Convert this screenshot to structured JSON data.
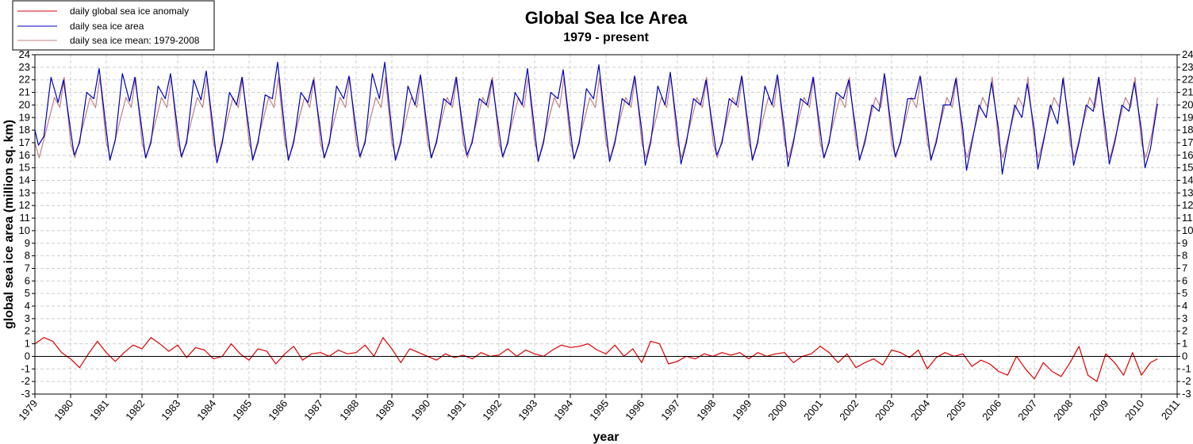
{
  "chart_data": {
    "type": "line",
    "title": "Global Sea Ice Area",
    "subtitle": "1979 - present",
    "xlabel": "year",
    "ylabel": "global sea ice area (million sq. km)",
    "xlim": [
      1979,
      2011
    ],
    "ylim": [
      -3,
      24
    ],
    "x_ticks": [
      "1979",
      "1980",
      "1981",
      "1982",
      "1983",
      "1984",
      "1985",
      "1986",
      "1987",
      "1988",
      "1989",
      "1990",
      "1991",
      "1992",
      "1993",
      "1994",
      "1995",
      "1996",
      "1997",
      "1998",
      "1999",
      "2000",
      "2001",
      "2002",
      "2003",
      "2004",
      "2005",
      "2006",
      "2007",
      "2008",
      "2009",
      "2010",
      "2011"
    ],
    "y_ticks": [
      "24",
      "23",
      "22",
      "21",
      "20",
      "19",
      "18",
      "17",
      "16",
      "15",
      "14",
      "13",
      "12",
      "11",
      "10",
      "9",
      "8",
      "7",
      "6",
      "5",
      "4",
      "3",
      "2",
      "1",
      "0",
      "-1",
      "-2",
      "-3"
    ],
    "grid": true,
    "legend_position": "top-left",
    "series": [
      {
        "name": "daily global sea ice anomaly",
        "color": "#dd0000",
        "x": [
          1979.0,
          1979.25,
          1979.5,
          1979.75,
          1980.0,
          1980.25,
          1980.5,
          1980.75,
          1981.0,
          1981.25,
          1981.5,
          1981.75,
          1982.0,
          1982.25,
          1982.5,
          1982.75,
          1983.0,
          1983.25,
          1983.5,
          1983.75,
          1984.0,
          1984.25,
          1984.5,
          1984.75,
          1985.0,
          1985.25,
          1985.5,
          1985.75,
          1986.0,
          1986.25,
          1986.5,
          1986.75,
          1987.0,
          1987.25,
          1987.5,
          1987.75,
          1988.0,
          1988.25,
          1988.5,
          1988.75,
          1989.0,
          1989.25,
          1989.5,
          1989.75,
          1990.0,
          1990.25,
          1990.5,
          1990.75,
          1991.0,
          1991.25,
          1991.5,
          1991.75,
          1992.0,
          1992.25,
          1992.5,
          1992.75,
          1993.0,
          1993.25,
          1993.5,
          1993.75,
          1994.0,
          1994.25,
          1994.5,
          1994.75,
          1995.0,
          1995.25,
          1995.5,
          1995.75,
          1996.0,
          1996.25,
          1996.5,
          1996.75,
          1997.0,
          1997.25,
          1997.5,
          1997.75,
          1998.0,
          1998.25,
          1998.5,
          1998.75,
          1999.0,
          1999.25,
          1999.5,
          1999.75,
          2000.0,
          2000.25,
          2000.5,
          2000.75,
          2001.0,
          2001.25,
          2001.5,
          2001.75,
          2002.0,
          2002.25,
          2002.5,
          2002.75,
          2003.0,
          2003.25,
          2003.5,
          2003.75,
          2004.0,
          2004.25,
          2004.5,
          2004.75,
          2005.0,
          2005.25,
          2005.5,
          2005.75,
          2006.0,
          2006.25,
          2006.5,
          2006.75,
          2007.0,
          2007.25,
          2007.5,
          2007.75,
          2008.0,
          2008.25,
          2008.5,
          2008.75,
          2009.0,
          2009.25,
          2009.5,
          2009.75,
          2010.0,
          2010.25,
          2010.45
        ],
        "values": [
          1.0,
          1.5,
          1.2,
          0.3,
          -0.2,
          -0.9,
          0.2,
          1.2,
          0.3,
          -0.4,
          0.3,
          0.9,
          0.6,
          1.5,
          1.0,
          0.4,
          0.9,
          -0.1,
          0.7,
          0.5,
          -0.2,
          0.0,
          1.0,
          0.2,
          -0.3,
          0.6,
          0.4,
          -0.6,
          0.2,
          0.8,
          -0.3,
          0.2,
          0.3,
          0.0,
          0.5,
          0.2,
          0.3,
          0.9,
          0.0,
          1.5,
          0.6,
          -0.5,
          0.6,
          0.3,
          0.0,
          -0.3,
          0.2,
          -0.1,
          0.1,
          -0.2,
          0.3,
          0.0,
          0.1,
          0.6,
          0.0,
          0.5,
          0.2,
          0.0,
          0.5,
          0.9,
          0.7,
          0.8,
          1.0,
          0.5,
          0.2,
          0.9,
          0.0,
          0.6,
          -0.5,
          1.2,
          1.0,
          -0.6,
          -0.4,
          0.0,
          -0.2,
          0.2,
          0.0,
          0.3,
          0.1,
          0.3,
          -0.2,
          0.3,
          0.0,
          0.2,
          0.3,
          -0.5,
          0.0,
          0.2,
          0.8,
          0.3,
          -0.5,
          0.2,
          -0.9,
          -0.5,
          -0.2,
          -0.7,
          0.5,
          0.3,
          -0.1,
          0.5,
          -1.0,
          -0.1,
          0.3,
          0.0,
          0.2,
          -0.8,
          -0.3,
          -0.6,
          -1.2,
          -1.5,
          0.0,
          -1.0,
          -1.8,
          -0.5,
          -1.2,
          -1.6,
          -0.5,
          0.8,
          -1.5,
          -2.0,
          0.2,
          -0.5,
          -1.5,
          0.3,
          -1.5,
          -0.5,
          -0.2
        ]
      },
      {
        "name": "daily sea ice area",
        "color": "#0000bb",
        "x": [
          1979.0,
          1979.1,
          1979.25,
          1979.45,
          1979.65,
          1979.8,
          1980.0,
          1980.1,
          1980.25,
          1980.45,
          1980.65,
          1980.8,
          1981.0,
          1981.1,
          1981.25,
          1981.45,
          1981.65,
          1981.8,
          1982.0,
          1982.1,
          1982.25,
          1982.45,
          1982.65,
          1982.8,
          1983.0,
          1983.1,
          1983.25,
          1983.45,
          1983.65,
          1983.8,
          1984.0,
          1984.1,
          1984.25,
          1984.45,
          1984.65,
          1984.8,
          1985.0,
          1985.1,
          1985.25,
          1985.45,
          1985.65,
          1985.8,
          1986.0,
          1986.1,
          1986.25,
          1986.45,
          1986.65,
          1986.8,
          1987.0,
          1987.1,
          1987.25,
          1987.45,
          1987.65,
          1987.8,
          1988.0,
          1988.1,
          1988.25,
          1988.45,
          1988.65,
          1988.8,
          1989.0,
          1989.1,
          1989.25,
          1989.45,
          1989.65,
          1989.8,
          1990.0,
          1990.1,
          1990.25,
          1990.45,
          1990.65,
          1990.8,
          1991.0,
          1991.1,
          1991.25,
          1991.45,
          1991.65,
          1991.8,
          1992.0,
          1992.1,
          1992.25,
          1992.45,
          1992.65,
          1992.8,
          1993.0,
          1993.1,
          1993.25,
          1993.45,
          1993.65,
          1993.8,
          1994.0,
          1994.1,
          1994.25,
          1994.45,
          1994.65,
          1994.8,
          1995.0,
          1995.1,
          1995.25,
          1995.45,
          1995.65,
          1995.8,
          1996.0,
          1996.1,
          1996.25,
          1996.45,
          1996.65,
          1996.8,
          1997.0,
          1997.1,
          1997.25,
          1997.45,
          1997.65,
          1997.8,
          1998.0,
          1998.1,
          1998.25,
          1998.45,
          1998.65,
          1998.8,
          1999.0,
          1999.1,
          1999.25,
          1999.45,
          1999.65,
          1999.8,
          2000.0,
          2000.1,
          2000.25,
          2000.45,
          2000.65,
          2000.8,
          2001.0,
          2001.1,
          2001.25,
          2001.45,
          2001.65,
          2001.8,
          2002.0,
          2002.1,
          2002.25,
          2002.45,
          2002.65,
          2002.8,
          2003.0,
          2003.1,
          2003.25,
          2003.45,
          2003.65,
          2003.8,
          2004.0,
          2004.1,
          2004.25,
          2004.45,
          2004.65,
          2004.8,
          2005.0,
          2005.1,
          2005.25,
          2005.45,
          2005.65,
          2005.8,
          2006.0,
          2006.1,
          2006.25,
          2006.45,
          2006.65,
          2006.8,
          2007.0,
          2007.1,
          2007.25,
          2007.45,
          2007.65,
          2007.8,
          2008.0,
          2008.1,
          2008.25,
          2008.45,
          2008.65,
          2008.8,
          2009.0,
          2009.1,
          2009.25,
          2009.45,
          2009.65,
          2009.8,
          2010.0,
          2010.1,
          2010.25,
          2010.45
        ],
        "values": [
          18.0,
          16.8,
          17.5,
          22.2,
          20.2,
          22.0,
          18.0,
          16.0,
          17.0,
          21.0,
          20.5,
          22.9,
          18.0,
          15.6,
          17.2,
          22.5,
          20.3,
          22.2,
          18.0,
          15.8,
          17.0,
          21.5,
          20.5,
          22.5,
          18.0,
          15.9,
          17.0,
          22.0,
          20.4,
          22.7,
          18.0,
          15.4,
          17.0,
          21.0,
          20.0,
          22.2,
          18.0,
          15.6,
          17.0,
          20.8,
          20.5,
          23.4,
          18.0,
          15.6,
          17.0,
          21.0,
          20.2,
          22.0,
          18.0,
          15.8,
          17.0,
          21.5,
          20.5,
          22.3,
          18.0,
          15.9,
          17.0,
          22.5,
          20.5,
          23.4,
          18.0,
          15.6,
          17.0,
          21.5,
          20.0,
          22.4,
          18.0,
          15.8,
          17.0,
          20.5,
          20.0,
          22.2,
          18.0,
          16.0,
          17.0,
          20.5,
          20.0,
          22.0,
          18.0,
          15.9,
          17.0,
          21.0,
          20.0,
          22.9,
          18.0,
          15.5,
          17.0,
          21.0,
          20.5,
          22.8,
          18.0,
          15.7,
          17.0,
          21.3,
          20.5,
          23.2,
          18.0,
          15.5,
          17.0,
          20.5,
          20.0,
          22.3,
          18.0,
          15.2,
          17.0,
          21.5,
          20.0,
          22.6,
          18.0,
          15.3,
          17.0,
          20.5,
          20.0,
          22.0,
          18.0,
          16.0,
          17.0,
          20.5,
          20.0,
          22.3,
          18.0,
          15.6,
          17.0,
          21.5,
          20.0,
          22.4,
          18.0,
          15.1,
          17.0,
          20.5,
          20.0,
          22.2,
          18.0,
          15.8,
          17.0,
          21.0,
          20.5,
          22.0,
          18.0,
          15.6,
          17.0,
          20.0,
          19.5,
          22.5,
          18.0,
          15.9,
          17.0,
          20.5,
          20.5,
          22.3,
          18.0,
          15.6,
          17.0,
          20.0,
          20.0,
          22.1,
          18.0,
          14.8,
          17.0,
          20.0,
          19.0,
          21.8,
          18.0,
          14.5,
          17.0,
          20.0,
          19.0,
          21.7,
          18.0,
          14.9,
          17.0,
          20.0,
          18.5,
          22.1,
          18.0,
          15.2,
          17.0,
          20.0,
          19.5,
          22.2,
          18.0,
          15.3,
          17.0,
          20.0,
          19.5,
          21.8,
          18.0,
          15.0,
          16.5,
          20.1
        ]
      },
      {
        "name": "daily sea ice mean: 1979-2008",
        "color": "#c08080",
        "x": [
          1979.0,
          1979.12,
          1979.3,
          1979.55,
          1979.7,
          1979.82,
          1980.0,
          1980.12,
          1980.3,
          1980.55,
          1980.7,
          1980.82,
          1981.0,
          1981.12,
          1981.3,
          1981.55,
          1981.7,
          1981.82,
          1982.0,
          1982.12,
          1982.3,
          1982.55,
          1982.7,
          1982.82,
          1983.0,
          1983.12,
          1983.3,
          1983.55,
          1983.7,
          1983.82,
          1984.0,
          1984.12,
          1984.3,
          1984.55,
          1984.7,
          1984.82,
          1985.0,
          1985.12,
          1985.3,
          1985.55,
          1985.7,
          1985.82,
          1986.0,
          1986.12,
          1986.3,
          1986.55,
          1986.7,
          1986.82,
          1987.0,
          1987.12,
          1987.3,
          1987.55,
          1987.7,
          1987.82,
          1988.0,
          1988.12,
          1988.3,
          1988.55,
          1988.7,
          1988.82,
          1989.0,
          1989.12,
          1989.3,
          1989.55,
          1989.7,
          1989.82,
          1990.0,
          1990.12,
          1990.3,
          1990.55,
          1990.7,
          1990.82,
          1991.0,
          1991.12,
          1991.3,
          1991.55,
          1991.7,
          1991.82,
          1992.0,
          1992.12,
          1992.3,
          1992.55,
          1992.7,
          1992.82,
          1993.0,
          1993.12,
          1993.3,
          1993.55,
          1993.7,
          1993.82,
          1994.0,
          1994.12,
          1994.3,
          1994.55,
          1994.7,
          1994.82,
          1995.0,
          1995.12,
          1995.3,
          1995.55,
          1995.7,
          1995.82,
          1996.0,
          1996.12,
          1996.3,
          1996.55,
          1996.7,
          1996.82,
          1997.0,
          1997.12,
          1997.3,
          1997.55,
          1997.7,
          1997.82,
          1998.0,
          1998.12,
          1998.3,
          1998.55,
          1998.7,
          1998.82,
          1999.0,
          1999.12,
          1999.3,
          1999.55,
          1999.7,
          1999.82,
          2000.0,
          2000.12,
          2000.3,
          2000.55,
          2000.7,
          2000.82,
          2001.0,
          2001.12,
          2001.3,
          2001.55,
          2001.7,
          2001.82,
          2002.0,
          2002.12,
          2002.3,
          2002.55,
          2002.7,
          2002.82,
          2003.0,
          2003.12,
          2003.3,
          2003.55,
          2003.7,
          2003.82,
          2004.0,
          2004.12,
          2004.3,
          2004.55,
          2004.7,
          2004.82,
          2005.0,
          2005.12,
          2005.3,
          2005.55,
          2005.7,
          2005.82,
          2006.0,
          2006.12,
          2006.3,
          2006.55,
          2006.7,
          2006.82,
          2007.0,
          2007.12,
          2007.3,
          2007.55,
          2007.7,
          2007.82,
          2008.0,
          2008.12,
          2008.3,
          2008.55,
          2008.7,
          2008.82,
          2009.0,
          2009.12,
          2009.3,
          2009.55,
          2009.7,
          2009.82,
          2010.0,
          2010.12,
          2010.3,
          2010.45
        ],
        "values": [
          17.0,
          15.8,
          17.8,
          20.6,
          19.8,
          22.2,
          17.0,
          15.8,
          17.8,
          20.6,
          19.8,
          22.2,
          17.0,
          15.8,
          17.8,
          20.6,
          19.8,
          22.2,
          17.0,
          15.8,
          17.8,
          20.6,
          19.8,
          22.2,
          17.0,
          15.8,
          17.8,
          20.6,
          19.8,
          22.2,
          17.0,
          15.8,
          17.8,
          20.6,
          19.8,
          22.2,
          17.0,
          15.8,
          17.8,
          20.6,
          19.8,
          22.2,
          17.0,
          15.8,
          17.8,
          20.6,
          19.8,
          22.2,
          17.0,
          15.8,
          17.8,
          20.6,
          19.8,
          22.2,
          17.0,
          15.8,
          17.8,
          20.6,
          19.8,
          22.2,
          17.0,
          15.8,
          17.8,
          20.6,
          19.8,
          22.2,
          17.0,
          15.8,
          17.8,
          20.6,
          19.8,
          22.2,
          17.0,
          15.8,
          17.8,
          20.6,
          19.8,
          22.2,
          17.0,
          15.8,
          17.8,
          20.6,
          19.8,
          22.2,
          17.0,
          15.8,
          17.8,
          20.6,
          19.8,
          22.2,
          17.0,
          15.8,
          17.8,
          20.6,
          19.8,
          22.2,
          17.0,
          15.8,
          17.8,
          20.6,
          19.8,
          22.2,
          17.0,
          15.8,
          17.8,
          20.6,
          19.8,
          22.2,
          17.0,
          15.8,
          17.8,
          20.6,
          19.8,
          22.2,
          17.0,
          15.8,
          17.8,
          20.6,
          19.8,
          22.2,
          17.0,
          15.8,
          17.8,
          20.6,
          19.8,
          22.2,
          17.0,
          15.8,
          17.8,
          20.6,
          19.8,
          22.2,
          17.0,
          15.8,
          17.8,
          20.6,
          19.8,
          22.2,
          17.0,
          15.8,
          17.8,
          20.6,
          19.8,
          22.2,
          17.0,
          15.8,
          17.8,
          20.6,
          19.8,
          22.2,
          17.0,
          15.8,
          17.8,
          20.6,
          19.8,
          22.2,
          17.0,
          15.8,
          17.8,
          20.6,
          19.8,
          22.2,
          17.0,
          15.8,
          17.8,
          20.6,
          19.8,
          22.2,
          17.0,
          15.8,
          17.8,
          20.6,
          19.8,
          22.2,
          17.0,
          15.8,
          17.8,
          20.6,
          19.8,
          22.2,
          17.0,
          15.8,
          17.8,
          20.6,
          19.8,
          22.2,
          17.0,
          15.8,
          17.8,
          20.6
        ]
      }
    ]
  }
}
